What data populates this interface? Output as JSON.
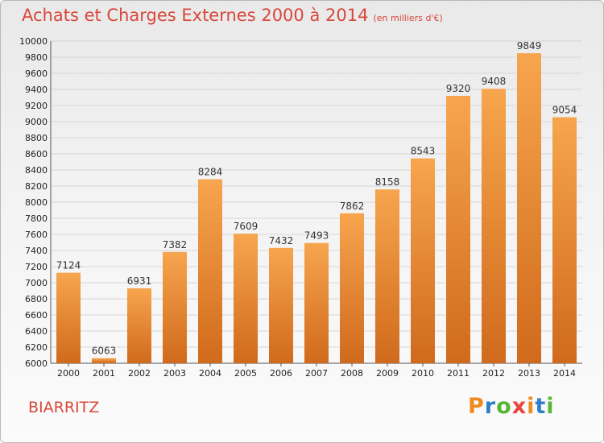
{
  "title": "Achats et Charges Externes 2000 à 2014",
  "unit": "(en milliers d'€)",
  "commune": "BIARRITZ",
  "logo": "Proxiti",
  "colors": {
    "title": "#d8473a",
    "bar_top": "#f7a54e",
    "bar_bottom": "#d06a1c",
    "logo_letters": [
      "#ef8a1e",
      "#2f7fc8",
      "#59b534",
      "#e8453c",
      "#ef8a1e",
      "#2f7fc8",
      "#59b534"
    ]
  },
  "chart_data": {
    "type": "bar",
    "title": "Achats et Charges Externes 2000 à 2014",
    "subtitle": "(en milliers d'€)",
    "categories": [
      "2000",
      "2001",
      "2002",
      "2003",
      "2004",
      "2005",
      "2006",
      "2007",
      "2008",
      "2009",
      "2010",
      "2011",
      "2012",
      "2013",
      "2014"
    ],
    "values": [
      7124,
      6063,
      6931,
      7382,
      8284,
      7609,
      7432,
      7493,
      7862,
      8158,
      8543,
      9320,
      9408,
      9849,
      9054
    ],
    "ylim": [
      6000,
      10000
    ],
    "yticks": [
      6000,
      6200,
      6400,
      6600,
      6800,
      7000,
      7200,
      7400,
      7600,
      7800,
      8000,
      8200,
      8400,
      8600,
      8800,
      9000,
      9200,
      9400,
      9600,
      9800,
      10000
    ],
    "grid": true,
    "legend": "none"
  }
}
